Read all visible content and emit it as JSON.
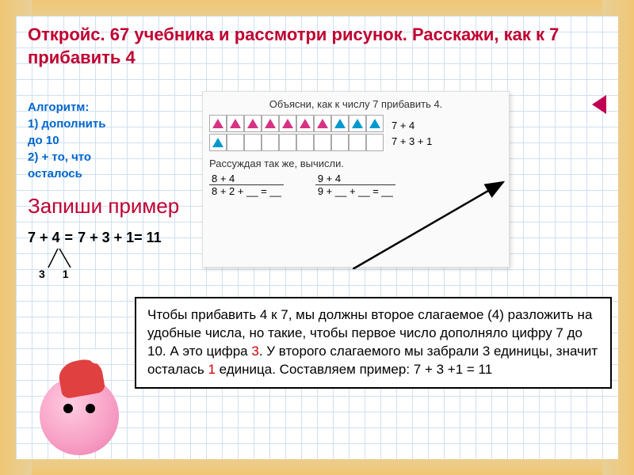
{
  "title": "Откройс. 67 учебника и рассмотри рисунок. Расскажи, как к 7 прибавить 4",
  "algorithm": {
    "heading": "Алгоритм:",
    "step1": "1) дополнить до 10",
    "step2": " 2) + то, что осталось"
  },
  "write_example": "Запиши пример",
  "textbook": {
    "title": "Объясни, как к числу 7 прибавить 4.",
    "row1_colors": [
      "#d63384",
      "#d63384",
      "#d63384",
      "#d63384",
      "#d63384",
      "#d63384",
      "#d63384",
      "#0099cc",
      "#0099cc",
      "#0099cc"
    ],
    "row2_colors": [
      "#0099cc",
      "",
      "",
      "",
      "",
      "",
      "",
      "",
      "",
      ""
    ],
    "eq1": "7 + 4",
    "eq2": "7 + 3 + 1",
    "subtitle": "Рассуждая так же, вычисли.",
    "ex1_top": "8 + 4",
    "ex1_bot": "8 + 2 + __ = __",
    "ex2_top": "9 + 4",
    "ex2_bot": "9 + __ + __ = __"
  },
  "equation": {
    "lhs": "7 + 4",
    "eq": "=",
    "rhs": "7  + 3 + 1=  11",
    "split_a": "3",
    "split_b": "1"
  },
  "explanation": {
    "text_parts": [
      "Чтобы прибавить 4 к 7, мы должны второе слагаемое (4) разложить на удобные числа, но такие, чтобы первое число дополняло цифру 7 до 10. А это цифра ",
      "3",
      ". У второго слагаемого мы забрали 3 единицы, значит осталась ",
      "1",
      " единица. Составляем пример: 7 + 3 +1 = 11"
    ],
    "red_color": "#cc0000",
    "border_color": "#000000",
    "font_size": 17
  },
  "colors": {
    "title_color": "#c00030",
    "algorithm_color": "#0066cc",
    "write_example_color": "#c00030",
    "grid_line": "#d0e0f0",
    "arrow_marker": "#c00050"
  }
}
